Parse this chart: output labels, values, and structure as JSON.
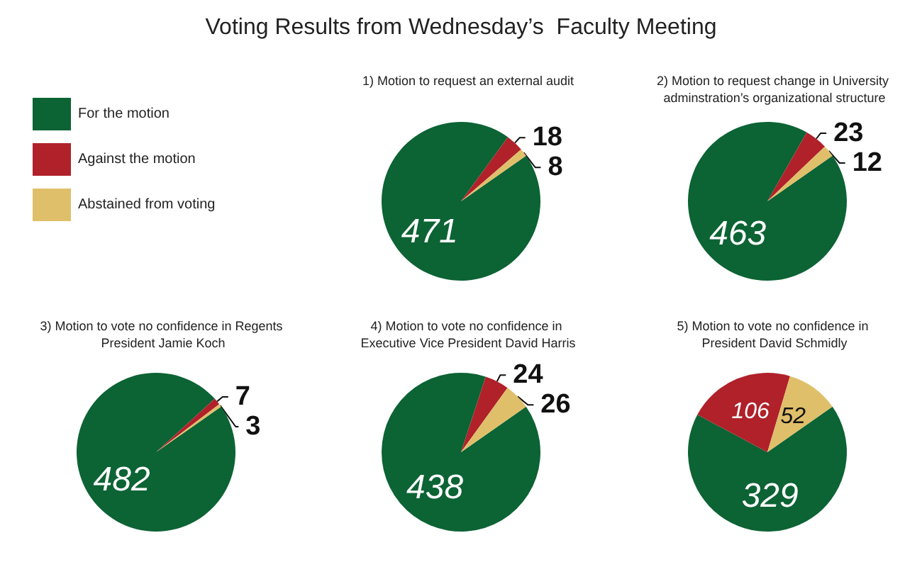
{
  "chart_data": [
    {
      "type": "other",
      "title": "Voting Results from Wednesday’s  Faculty Meeting"
    },
    {
      "type": "pie",
      "title": "1) Motion to request an external audit",
      "categories": [
        "For the motion",
        "Against the motion",
        "Abstained from voting"
      ],
      "values": [
        471,
        18,
        8
      ],
      "colors": [
        "#0c6334",
        "#b0212a",
        "#dfbf6a"
      ],
      "data_labels": true,
      "legend": "left"
    },
    {
      "type": "pie",
      "title": "2) Motion to request change in University adminstration’s organizational structure",
      "categories": [
        null,
        null,
        null
      ],
      "values": [
        463,
        23,
        12
      ],
      "colors": [
        "#0c6334",
        "#b0212a",
        "#dfbf6a"
      ],
      "data_labels": true
    },
    {
      "type": "pie",
      "title": "3) Motion to vote no confidence in Regents President Jamie Koch",
      "categories": [
        null,
        null,
        null
      ],
      "values": [
        482,
        7,
        3
      ],
      "colors": [
        "#0c6334",
        "#b0212a",
        "#dfbf6a"
      ],
      "data_labels": true
    },
    {
      "type": "pie",
      "title": "4) Motion to vote no confidence in Executive Vice President David Harris",
      "categories": [
        null,
        null,
        null
      ],
      "values": [
        438,
        24,
        26
      ],
      "colors": [
        "#0c6334",
        "#b0212a",
        "#dfbf6a"
      ],
      "data_labels": true
    },
    {
      "type": "pie",
      "title": "5) Motion to vote no confidence in President David Schmidly",
      "categories": [
        null,
        null,
        null
      ],
      "values": [
        329,
        106,
        52
      ],
      "colors": [
        "#0c6334",
        "#b0212a",
        "#dfbf6a"
      ],
      "data_labels": true
    }
  ]
}
